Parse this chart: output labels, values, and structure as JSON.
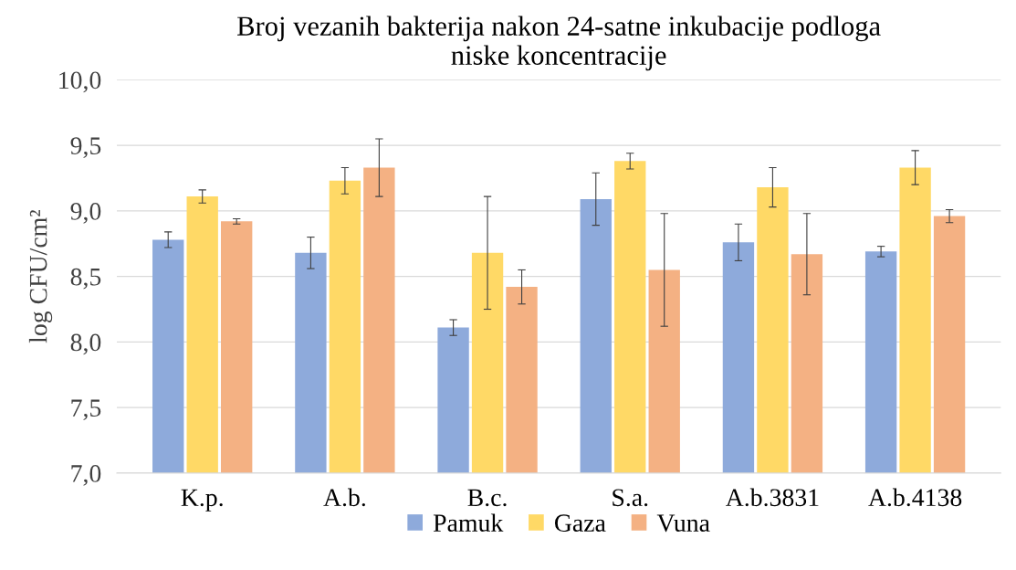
{
  "chart_data": {
    "type": "bar",
    "title": "Broj vezanih bakterija nakon 24-satne inkubacije podloga\nniske koncentracije",
    "ylabel": "log CFU/cm²",
    "categories": [
      "K.p.",
      "A.b.",
      "B.c.",
      "S.a.",
      "A.b.3831",
      "A.b.4138"
    ],
    "series": [
      {
        "name": "Pamuk",
        "color": "#8eaadb",
        "values": [
          8.78,
          8.68,
          8.11,
          9.09,
          8.76,
          8.69
        ],
        "errors": [
          0.06,
          0.12,
          0.06,
          0.2,
          0.14,
          0.04
        ]
      },
      {
        "name": "Gaza",
        "color": "#ffd966",
        "values": [
          9.11,
          9.23,
          8.68,
          9.38,
          9.18,
          9.33
        ],
        "errors": [
          0.05,
          0.1,
          0.43,
          0.06,
          0.15,
          0.13
        ]
      },
      {
        "name": "Vuna",
        "color": "#f4b183",
        "values": [
          8.92,
          9.33,
          8.42,
          8.55,
          8.67,
          8.96
        ],
        "errors": [
          0.02,
          0.22,
          0.13,
          0.43,
          0.31,
          0.05
        ]
      }
    ],
    "ylim": [
      7.0,
      10.0
    ],
    "yticks": [
      {
        "value": 7.0,
        "label": "7,0"
      },
      {
        "value": 7.5,
        "label": "7,5"
      },
      {
        "value": 8.0,
        "label": "8,0"
      },
      {
        "value": 8.5,
        "label": "8,5"
      },
      {
        "value": 9.0,
        "label": "9,0"
      },
      {
        "value": 9.5,
        "label": "9,5"
      },
      {
        "value": 10.0,
        "label": "10,0"
      }
    ],
    "grid": "y",
    "legend": "bottom"
  }
}
